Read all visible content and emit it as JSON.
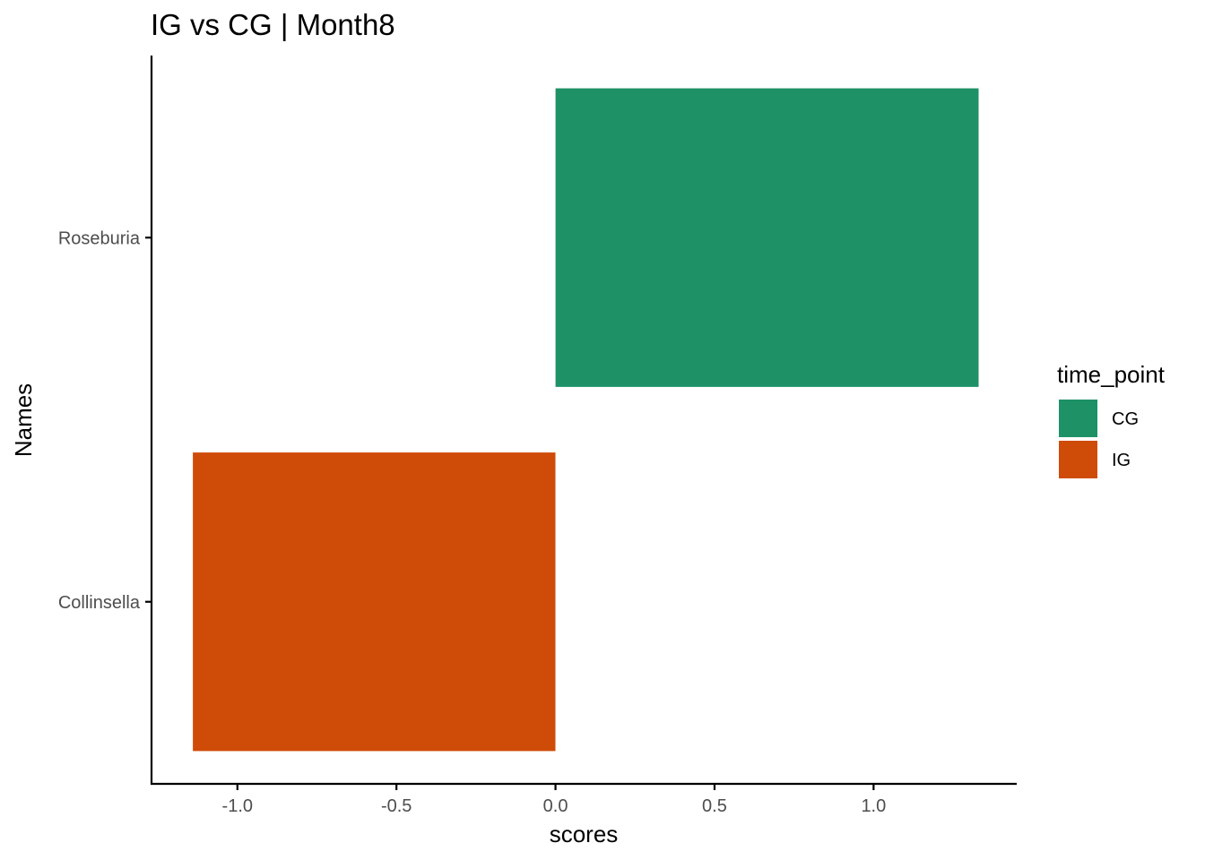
{
  "chart_data": {
    "type": "bar",
    "orientation": "horizontal",
    "title": "IG vs CG | Month8",
    "xlabel": "scores",
    "ylabel": "Names",
    "xlim": [
      -1.27,
      1.45
    ],
    "x_ticks": [
      -1.0,
      -0.5,
      0.0,
      0.5,
      1.0
    ],
    "x_tick_labels": [
      "-1.0",
      "-0.5",
      "0.0",
      "0.5",
      "1.0"
    ],
    "categories": [
      "Roseburia",
      "Collinsella"
    ],
    "bars": [
      {
        "name": "Roseburia",
        "value": 1.33,
        "group": "CG"
      },
      {
        "name": "Collinsella",
        "value": -1.14,
        "group": "IG"
      }
    ],
    "legend": {
      "title": "time_point",
      "placement": "right",
      "items": [
        {
          "label": "CG",
          "color": "#1E9167"
        },
        {
          "label": "IG",
          "color": "#CF4C08"
        }
      ]
    },
    "grid": false
  }
}
